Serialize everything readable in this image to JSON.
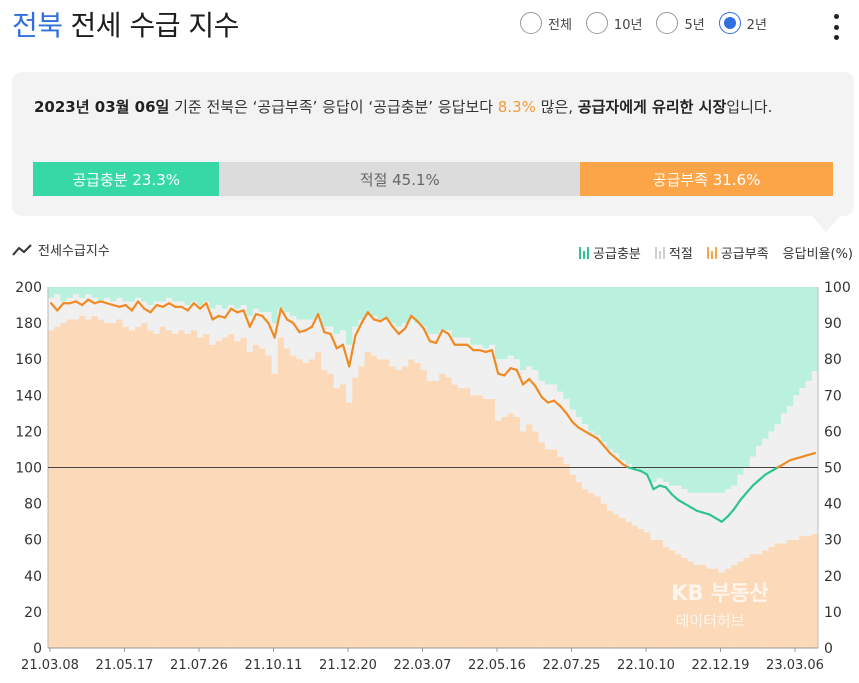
{
  "header": {
    "region": "전북",
    "title": "전세 수급 지수"
  },
  "period_options": [
    {
      "label": "전체",
      "selected": false
    },
    {
      "label": "10년",
      "selected": false
    },
    {
      "label": "5년",
      "selected": false
    },
    {
      "label": "2년",
      "selected": true
    }
  ],
  "summary": {
    "date": "2023년 03월 06일",
    "text1": " 기준 전북은 ‘공급부족’ 응답이 ‘공급충분’ 응답보다 ",
    "diff": "8.3%",
    "text2": " 많은, ",
    "conclusion": "공급자에게 유리한 시장",
    "text3": "입니다."
  },
  "ratio_bar": {
    "sufficient": {
      "label": "공급충분 23.3%",
      "value": 23.3,
      "color": "#36d8a6"
    },
    "adequate": {
      "label": "적절 45.1%",
      "value": 45.1,
      "color": "#dcdcdc"
    },
    "shortage": {
      "label": "공급부족 31.6%",
      "value": 31.6,
      "color": "#fba548"
    }
  },
  "chart_header": {
    "title": "전세수급지수",
    "legend": {
      "sufficient": "공급충분",
      "adequate": "적절",
      "shortage": "공급부족",
      "ratio_axis": "응답비율(%)"
    }
  },
  "watermark": {
    "line1": "KB 부동산",
    "line2": "데이터허브"
  },
  "chart_data": {
    "type": "line",
    "title": "전세수급지수",
    "x_tick_labels": [
      "21.03.08",
      "21.05.17",
      "21.07.26",
      "21.10.11",
      "21.12.20",
      "22.03.07",
      "22.05.16",
      "22.07.25",
      "22.10.10",
      "22.12.19",
      "23.03.06"
    ],
    "y_left": {
      "ticks": [
        0,
        20,
        40,
        60,
        80,
        100,
        120,
        140,
        160,
        180,
        200
      ],
      "lim": [
        0,
        200
      ]
    },
    "y_right": {
      "label": "응답비율(%)",
      "ticks": [
        0,
        10,
        20,
        30,
        40,
        50,
        60,
        70,
        80,
        90,
        100
      ],
      "lim": [
        0,
        100
      ]
    },
    "reference_line": 100,
    "colors": {
      "index_above": "#f08a24",
      "index_below": "#2fc48f",
      "shortage": "#fcd9b8",
      "adequate": "#f0f0f0",
      "sufficient": "#b9f0de"
    },
    "series": [
      {
        "name": "전세수급지수",
        "values": [
          191,
          187,
          191,
          191,
          192,
          190,
          193,
          191,
          192,
          191,
          190,
          189,
          190,
          187,
          192,
          188,
          186,
          190,
          189,
          191,
          189,
          189,
          187,
          191,
          188,
          191,
          182,
          184,
          183,
          188,
          186,
          187,
          178,
          185,
          184,
          180,
          172,
          188,
          182,
          180,
          175,
          176,
          178,
          185,
          175,
          174,
          166,
          168,
          156,
          173,
          180,
          186,
          182,
          181,
          183,
          178,
          174,
          177,
          184,
          181,
          177,
          170,
          169,
          176,
          174,
          168,
          168,
          168,
          165,
          165,
          164,
          165,
          152,
          151,
          155,
          154,
          146,
          149,
          145,
          139,
          136,
          137,
          134,
          130,
          125,
          122,
          120,
          118,
          116,
          112,
          108,
          105,
          102,
          100,
          99,
          98,
          96,
          88,
          90,
          89,
          85,
          82,
          80,
          78,
          76,
          75,
          74,
          72,
          70,
          73,
          77,
          82,
          86,
          90,
          93,
          96,
          98,
          100,
          102,
          104,
          105,
          106,
          107,
          108
        ]
      },
      {
        "name": "공급부족",
        "values": [
          88,
          89,
          90,
          91,
          91,
          92,
          91,
          92,
          91,
          90,
          90,
          91,
          89,
          88,
          89,
          90,
          88,
          87,
          89,
          88,
          87,
          88,
          87,
          88,
          86,
          87,
          84,
          85,
          86,
          87,
          85,
          86,
          82,
          84,
          83,
          81,
          76,
          86,
          83,
          81,
          80,
          79,
          80,
          82,
          77,
          76,
          72,
          73,
          68,
          75,
          78,
          82,
          81,
          80,
          80,
          78,
          77,
          78,
          80,
          79,
          77,
          74,
          74,
          76,
          75,
          73,
          72,
          72,
          70,
          70,
          69,
          69,
          63,
          64,
          65,
          64,
          60,
          62,
          60,
          57,
          55,
          55,
          53,
          51,
          48,
          46,
          44,
          43,
          42,
          40,
          38,
          37,
          36,
          35,
          34,
          33,
          32,
          30,
          30,
          28,
          27,
          26,
          25,
          24,
          23,
          23,
          22,
          22,
          21,
          22,
          23,
          24,
          25,
          26,
          26,
          27,
          28,
          29,
          29,
          30,
          30,
          31,
          31,
          31.6
        ]
      },
      {
        "name": "공급충분",
        "values": [
          3,
          2,
          4,
          3,
          2,
          3,
          2,
          3,
          4,
          3,
          4,
          3,
          4,
          4,
          3,
          4,
          5,
          4,
          4,
          3,
          4,
          4,
          5,
          4,
          5,
          4,
          6,
          5,
          6,
          5,
          6,
          5,
          8,
          6,
          7,
          7,
          10,
          6,
          7,
          8,
          9,
          9,
          9,
          8,
          11,
          11,
          13,
          12,
          16,
          11,
          9,
          8,
          8,
          9,
          9,
          10,
          11,
          10,
          9,
          10,
          11,
          13,
          13,
          12,
          12,
          14,
          14,
          14,
          16,
          16,
          17,
          16,
          20,
          20,
          19,
          20,
          23,
          22,
          23,
          26,
          27,
          27,
          29,
          31,
          34,
          36,
          38,
          40,
          41,
          43,
          45,
          46,
          48,
          49,
          50,
          51,
          52,
          54,
          53,
          54,
          55,
          55,
          56,
          57,
          57,
          57,
          57,
          57,
          57,
          56,
          55,
          52,
          50,
          47,
          44,
          42,
          40,
          38,
          35,
          33,
          30,
          28,
          26,
          23.3
        ]
      }
    ]
  }
}
